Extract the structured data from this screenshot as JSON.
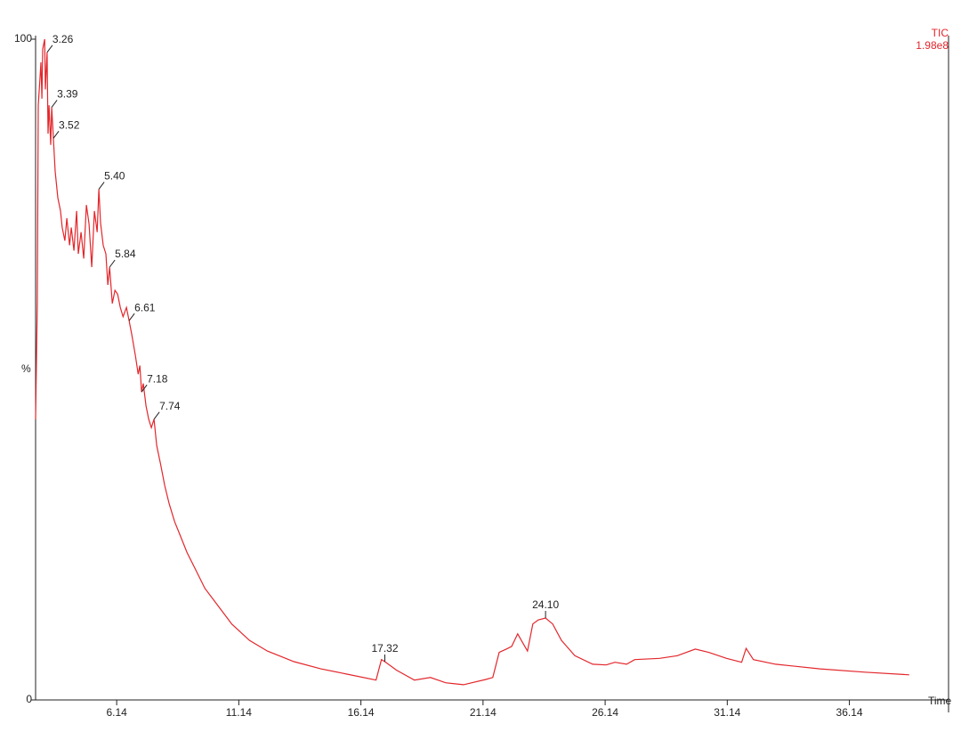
{
  "chart_data": {
    "type": "line",
    "series_label": "TIC",
    "scale_label": "1.98e8",
    "x_label": "Time",
    "y_label": "%",
    "color": "#e3262b",
    "xlim": [
      2.82,
      40.2
    ],
    "ylim": [
      0,
      100
    ],
    "xticks": [
      6.14,
      11.14,
      16.14,
      21.14,
      26.14,
      31.14,
      36.14
    ],
    "yticks": [
      0,
      100
    ],
    "x": [
      2.82,
      2.89,
      2.93,
      3.0,
      3.04,
      3.08,
      3.11,
      3.19,
      3.22,
      3.29,
      3.33,
      3.37,
      3.44,
      3.48,
      3.55,
      3.62,
      3.73,
      3.84,
      3.91,
      4.02,
      4.1,
      4.21,
      4.28,
      4.39,
      4.5,
      4.57,
      4.68,
      4.79,
      4.9,
      5.01,
      5.12,
      5.23,
      5.34,
      5.41,
      5.48,
      5.59,
      5.7,
      5.78,
      5.85,
      5.96,
      6.07,
      6.18,
      6.29,
      6.4,
      6.54,
      6.65,
      6.76,
      6.91,
      7.02,
      7.09,
      7.16,
      7.23,
      7.34,
      7.45,
      7.56,
      7.67,
      7.78,
      7.93,
      8.11,
      8.29,
      8.51,
      8.73,
      9.02,
      9.39,
      9.75,
      10.3,
      10.85,
      11.58,
      12.31,
      13.4,
      14.5,
      15.59,
      16.76,
      16.98,
      17.12,
      17.6,
      18.33,
      18.99,
      19.61,
      20.34,
      21.25,
      21.54,
      21.8,
      22.09,
      22.31,
      22.56,
      22.74,
      22.96,
      23.18,
      23.4,
      23.7,
      23.99,
      24.35,
      24.9,
      25.63,
      26.18,
      26.54,
      27.02,
      27.35,
      28.37,
      29.1,
      29.83,
      30.38,
      31.11,
      31.73,
      31.91,
      32.21,
      33.12,
      34.94,
      36.77,
      38.59
    ],
    "values": [
      42.5,
      60,
      90,
      94,
      96.5,
      91,
      98.5,
      100,
      92.4,
      98,
      85.7,
      90,
      84,
      89.7,
      85,
      80,
      76,
      74,
      71.5,
      69.5,
      72.9,
      68.8,
      71.5,
      68,
      74,
      67.5,
      70.8,
      66.8,
      74.9,
      72,
      65.5,
      74,
      70.8,
      77.3,
      72.2,
      68.8,
      67.5,
      62.8,
      65.5,
      60,
      62,
      61.4,
      59.4,
      58,
      59.4,
      57.4,
      55.3,
      52,
      49.3,
      50.6,
      46.6,
      47.9,
      44.5,
      42.5,
      41.2,
      42.5,
      38.5,
      35.8,
      32.4,
      29.7,
      27,
      25,
      22.3,
      19.6,
      16.9,
      14.2,
      11.5,
      9.0,
      7.4,
      5.8,
      4.7,
      3.9,
      3.0,
      6.1,
      5.8,
      4.5,
      3.0,
      3.4,
      2.6,
      2.3,
      3.1,
      3.4,
      7.2,
      7.7,
      8.1,
      10.0,
      8.8,
      7.4,
      11.5,
      12.1,
      12.4,
      11.5,
      9.0,
      6.7,
      5.4,
      5.3,
      5.7,
      5.4,
      6.1,
      6.3,
      6.7,
      7.7,
      7.2,
      6.3,
      5.7,
      7.8,
      6.1,
      5.4,
      4.7,
      4.2,
      3.8
    ],
    "peak_labels": [
      {
        "x": 3.29,
        "y": 98,
        "label": "3.26"
      },
      {
        "x": 3.48,
        "y": 89.7,
        "label": "3.39"
      },
      {
        "x": 3.55,
        "y": 85,
        "label": "3.52"
      },
      {
        "x": 5.41,
        "y": 77.3,
        "label": "5.40"
      },
      {
        "x": 5.85,
        "y": 65.5,
        "label": "5.84"
      },
      {
        "x": 6.65,
        "y": 57.4,
        "label": "6.61"
      },
      {
        "x": 7.16,
        "y": 46.6,
        "label": "7.18"
      },
      {
        "x": 7.67,
        "y": 42.5,
        "label": "7.74"
      },
      {
        "x": 17.12,
        "y": 5.8,
        "label": "17.32"
      },
      {
        "x": 23.7,
        "y": 12.4,
        "label": "24.10"
      }
    ]
  }
}
